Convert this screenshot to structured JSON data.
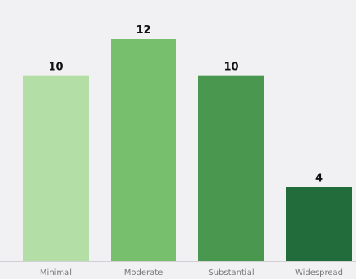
{
  "chart_data": {
    "type": "bar",
    "title": "",
    "xlabel": "",
    "ylabel": "",
    "categories": [
      "Minimal",
      "Moderate",
      "Substantial",
      "Widespread"
    ],
    "values": [
      10,
      12,
      10,
      4
    ],
    "ylim": [
      0,
      12
    ],
    "grid": false,
    "legend": "none",
    "data_labels": true,
    "colors": [
      "#b3dea5",
      "#77bf6c",
      "#4a9850",
      "#226b3a"
    ],
    "background": "#f1f1f4",
    "baseline_color": "#cfcfd4"
  }
}
